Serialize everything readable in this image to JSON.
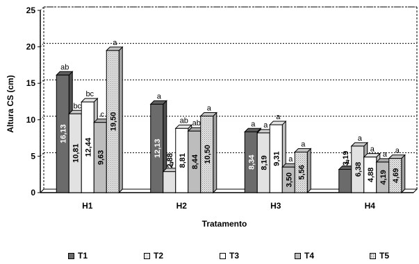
{
  "chart_data": {
    "type": "bar",
    "title": "",
    "xlabel": "Tratamento",
    "ylabel": "Altura CS (cm)",
    "ylim": [
      0,
      25
    ],
    "yticks": [
      "0",
      "5",
      "10",
      "15",
      "20",
      "25"
    ],
    "categories": [
      "H1",
      "H2",
      "H3",
      "H4"
    ],
    "grid": "horizontal dotted",
    "legend_position": "bottom",
    "series": [
      {
        "name": "T1",
        "color": "#6b6b6b",
        "pattern": "solid",
        "values": [
          16.13,
          12.13,
          8.34,
          3.19
        ],
        "value_labels": [
          "16,13",
          "12,13",
          "8,34",
          "3,19"
        ],
        "letters": [
          "ab",
          "a",
          "a",
          "a"
        ]
      },
      {
        "name": "T2",
        "color": "#e2e2e2",
        "pattern": "solid",
        "values": [
          10.81,
          2.88,
          8.19,
          6.38
        ],
        "value_labels": [
          "10,81",
          "2,88",
          "8,19",
          "6,38"
        ],
        "letters": [
          "bc",
          "b",
          "a",
          "a"
        ]
      },
      {
        "name": "T3",
        "color": "#ffffff",
        "pattern": "solid",
        "values": [
          12.44,
          8.81,
          9.31,
          4.88
        ],
        "value_labels": [
          "12,44",
          "8,81",
          "9,31",
          "4,88"
        ],
        "letters": [
          "bc",
          "ab",
          "a",
          "a"
        ]
      },
      {
        "name": "T4",
        "color": "#bdbdbd",
        "pattern": "solid",
        "values": [
          9.63,
          8.44,
          3.5,
          4.19
        ],
        "value_labels": [
          "9,63",
          "8,44",
          "3,50",
          "4,19"
        ],
        "letters": [
          "c",
          "ab",
          "a",
          "a"
        ]
      },
      {
        "name": "T5",
        "color": "#d8d8d8",
        "pattern": "dotted",
        "values": [
          19.5,
          10.5,
          5.56,
          4.69
        ],
        "value_labels": [
          "19,50",
          "10,50",
          "5,56",
          "4,69"
        ],
        "letters": [
          "a",
          "a",
          "a",
          "a"
        ]
      }
    ]
  }
}
